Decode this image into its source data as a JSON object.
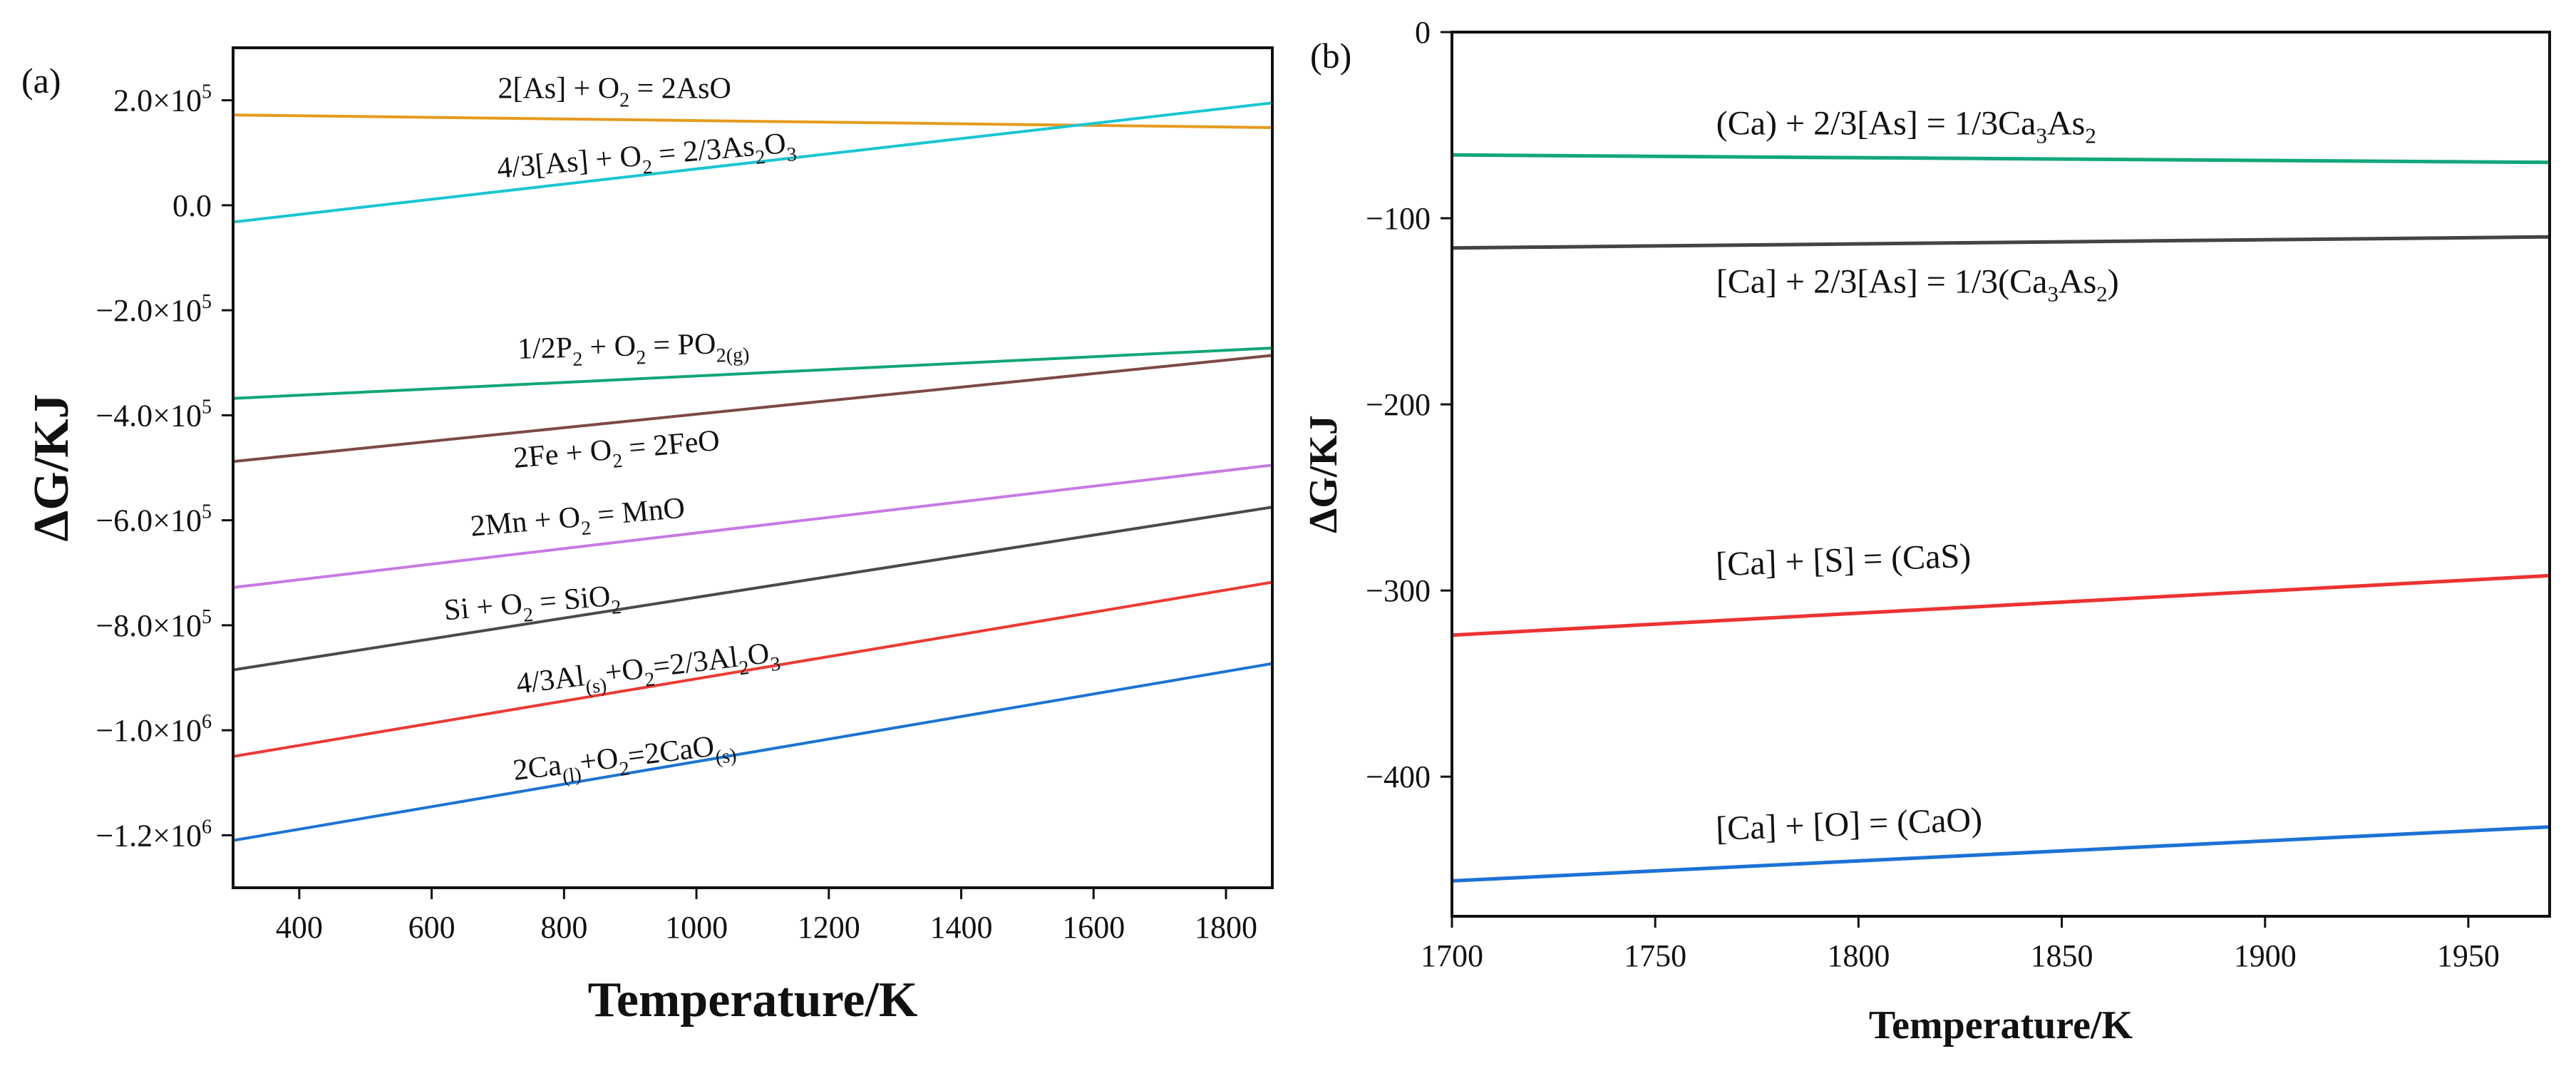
{
  "chart_data": [
    {
      "panel": "(a)",
      "type": "line",
      "xlabel": "Temperature/K",
      "ylabel": "ΔG/KJ",
      "xlim": [
        300,
        1870
      ],
      "ylim": [
        -1300000,
        300000
      ],
      "xticks": [
        400,
        600,
        800,
        1000,
        1200,
        1400,
        1600,
        1800
      ],
      "xtick_labels": [
        "400",
        "600",
        "800",
        "1000",
        "1200",
        "1400",
        "1600",
        "1800"
      ],
      "yticks": [
        200000,
        0,
        -200000,
        -400000,
        -600000,
        -800000,
        -1000000,
        -1200000
      ],
      "ytick_labels": [
        {
          "mant": "2.0×10",
          "exp": "5"
        },
        {
          "mant": "0.0",
          "exp": ""
        },
        {
          "mant": "−2.0×10",
          "exp": "5"
        },
        {
          "mant": "−4.0×10",
          "exp": "5"
        },
        {
          "mant": "−6.0×10",
          "exp": "5"
        },
        {
          "mant": "−8.0×10",
          "exp": "5"
        },
        {
          "mant": "−1.0×10",
          "exp": "6"
        },
        {
          "mant": "−1.2×10",
          "exp": "6"
        }
      ],
      "series": [
        {
          "name": "2[As] + O2 = 2AsO",
          "color": "#E69A1E",
          "x": [
            300,
            1870
          ],
          "y": [
            172000,
            148000
          ],
          "label": [
            {
              "t": "2[As] + O"
            },
            {
              "t": "2",
              "sub": true
            },
            {
              "t": " = 2AsO"
            }
          ],
          "label_anchor_x": 700,
          "label_anchor_y": 204000,
          "label_rot": 0
        },
        {
          "name": "4/3[As] + O2 = 2/3As2O3",
          "color": "#19C6D2",
          "x": [
            300,
            1870
          ],
          "y": [
            -32000,
            195000
          ],
          "label": [
            {
              "t": "4/3[As] + O"
            },
            {
              "t": "2",
              "sub": true
            },
            {
              "t": " = 2/3As"
            },
            {
              "t": "2",
              "sub": true
            },
            {
              "t": "O"
            },
            {
              "t": "3",
              "sub": true
            }
          ],
          "label_anchor_x": 700,
          "label_anchor_y": 52000,
          "label_rot": -5
        },
        {
          "name": "1/2P2 + O2 = PO2(g)",
          "color": "#11A67A",
          "x": [
            300,
            1870
          ],
          "y": [
            -368000,
            -272000
          ],
          "label": [
            {
              "t": "1/2P"
            },
            {
              "t": "2",
              "sub": true
            },
            {
              "t": " + O"
            },
            {
              "t": "2",
              "sub": true
            },
            {
              "t": " = PO"
            },
            {
              "t": "2(g)",
              "sub": true
            }
          ],
          "label_anchor_x": 730,
          "label_anchor_y": -292000,
          "label_rot": -1.5
        },
        {
          "name": "2Fe + O2 = 2FeO",
          "color": "#7D4A45",
          "x": [
            300,
            1870
          ],
          "y": [
            -488000,
            -286000
          ],
          "label": [
            {
              "t": "2Fe + O"
            },
            {
              "t": "2",
              "sub": true
            },
            {
              "t": " = 2FeO"
            }
          ],
          "label_anchor_x": 725,
          "label_anchor_y": -500000,
          "label_rot": -5
        },
        {
          "name": "2Mn + O2 = MnO",
          "color": "#C77AE3",
          "x": [
            300,
            1870
          ],
          "y": [
            -728000,
            -495000
          ],
          "label": [
            {
              "t": "2Mn + O"
            },
            {
              "t": "2",
              "sub": true
            },
            {
              "t": " = MnO"
            }
          ],
          "label_anchor_x": 660,
          "label_anchor_y": -630000,
          "label_rot": -5
        },
        {
          "name": "Si + O2 = SiO2",
          "color": "#4A4A4A",
          "x": [
            300,
            1870
          ],
          "y": [
            -885000,
            -575000
          ],
          "label": [
            {
              "t": "Si + O"
            },
            {
              "t": "2",
              "sub": true
            },
            {
              "t": " = SiO"
            },
            {
              "t": "2",
              "sub": true
            }
          ],
          "label_anchor_x": 620,
          "label_anchor_y": -790000,
          "label_rot": -5
        },
        {
          "name": "4/3Al(s)+O2=2/3Al2O3",
          "color": "#EC3A35",
          "x": [
            300,
            1870
          ],
          "y": [
            -1050000,
            -718000
          ],
          "label": [
            {
              "t": "4/3Al"
            },
            {
              "t": "(s)",
              "sub": true
            },
            {
              "t": "+O"
            },
            {
              "t": "2",
              "sub": true
            },
            {
              "t": "=2/3Al"
            },
            {
              "t": "2",
              "sub": true
            },
            {
              "t": "O"
            },
            {
              "t": "3",
              "sub": true
            }
          ],
          "label_anchor_x": 730,
          "label_anchor_y": -930000,
          "label_rot": -7
        },
        {
          "name": "2Ca(l)+O2=2CaO(s)",
          "color": "#1B74D4",
          "x": [
            300,
            1870
          ],
          "y": [
            -1210000,
            -873000
          ],
          "label": [
            {
              "t": "2Ca"
            },
            {
              "t": "(l)",
              "sub": true
            },
            {
              "t": "+O"
            },
            {
              "t": "2",
              "sub": true
            },
            {
              "t": "=2CaO"
            },
            {
              "t": "(s)",
              "sub": true
            }
          ],
          "label_anchor_x": 725,
          "label_anchor_y": -1095000,
          "label_rot": -7
        }
      ]
    },
    {
      "panel": "(b)",
      "type": "line",
      "xlabel": "Temperature/K",
      "ylabel": "ΔG/KJ",
      "xlim": [
        1700,
        1970
      ],
      "ylim": [
        -475,
        0
      ],
      "xticks": [
        1700,
        1750,
        1800,
        1850,
        1900,
        1950
      ],
      "xtick_labels": [
        "1700",
        "1750",
        "1800",
        "1850",
        "1900",
        "1950"
      ],
      "yticks": [
        0,
        -100,
        -200,
        -300,
        -400
      ],
      "ytick_labels": [
        {
          "mant": "0",
          "exp": ""
        },
        {
          "mant": "−100",
          "exp": ""
        },
        {
          "mant": "−200",
          "exp": ""
        },
        {
          "mant": "−300",
          "exp": ""
        },
        {
          "mant": "−400",
          "exp": ""
        }
      ],
      "series": [
        {
          "name": "(Ca) + 2/3[As] = 1/3Ca3As2",
          "color": "#13A77B",
          "x": [
            1700,
            1970
          ],
          "y": [
            -66,
            -70
          ],
          "label": [
            {
              "t": "(Ca) + 2/3[As] = 1/3Ca"
            },
            {
              "t": "3",
              "sub": true
            },
            {
              "t": "As"
            },
            {
              "t": "2",
              "sub": true
            }
          ],
          "label_anchor_x": 1765,
          "label_anchor_y": -55,
          "label_rot": 0
        },
        {
          "name": "[Ca] + 2/3[As] = 1/3(Ca3As2)",
          "color": "#444444",
          "x": [
            1700,
            1970
          ],
          "y": [
            -116,
            -110
          ],
          "label": [
            {
              "t": "[Ca] + 2/3[As] = 1/3(Ca"
            },
            {
              "t": "3",
              "sub": true
            },
            {
              "t": "As"
            },
            {
              "t": "2",
              "sub": true
            },
            {
              "t": ")"
            }
          ],
          "label_anchor_x": 1765,
          "label_anchor_y": -140,
          "label_rot": 0
        },
        {
          "name": "[Ca] + [S] = (CaS)",
          "color": "#EC3232",
          "x": [
            1700,
            1970
          ],
          "y": [
            -324,
            -292
          ],
          "label": [
            {
              "t": "[Ca] + [S]  =  (CaS)"
            }
          ],
          "label_anchor_x": 1765,
          "label_anchor_y": -292,
          "label_rot": -2
        },
        {
          "name": "[Ca] + [O] = (CaO)",
          "color": "#1C72D6",
          "x": [
            1700,
            1970
          ],
          "y": [
            -456,
            -427
          ],
          "label": [
            {
              "t": "[Ca] + [O] = (CaO)"
            }
          ],
          "label_anchor_x": 1765,
          "label_anchor_y": -434,
          "label_rot": -2
        }
      ]
    }
  ]
}
